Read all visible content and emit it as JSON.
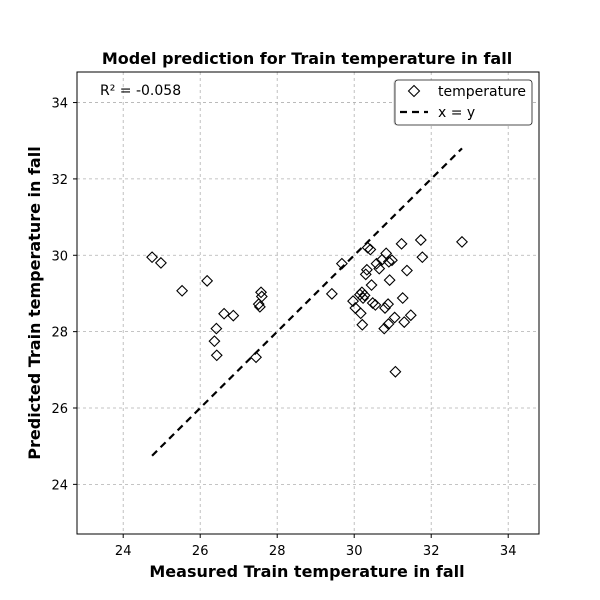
{
  "chart_data": {
    "type": "scatter",
    "title": "Model prediction for Train temperature in fall",
    "xlabel": "Measured Train temperature in fall",
    "ylabel": "Predicted Train temperature in fall",
    "annotation": "R² = -0.058",
    "xlim": [
      22.8,
      34.8
    ],
    "ylim": [
      22.7,
      34.8
    ],
    "xticks": [
      24,
      26,
      28,
      30,
      32,
      34
    ],
    "yticks": [
      24,
      26,
      28,
      30,
      32,
      34
    ],
    "grid": true,
    "legend_position": "top-right",
    "series": [
      {
        "name": "temperature",
        "marker": "diamond",
        "color": "#000000",
        "points": [
          [
            24.75,
            29.95
          ],
          [
            24.98,
            29.8
          ],
          [
            25.53,
            29.07
          ],
          [
            26.18,
            29.33
          ],
          [
            26.37,
            27.75
          ],
          [
            26.42,
            28.08
          ],
          [
            26.43,
            27.38
          ],
          [
            26.62,
            28.47
          ],
          [
            26.86,
            28.42
          ],
          [
            27.45,
            27.33
          ],
          [
            27.52,
            28.72
          ],
          [
            27.55,
            28.65
          ],
          [
            27.58,
            29.03
          ],
          [
            27.6,
            28.92
          ],
          [
            29.42,
            28.99
          ],
          [
            29.68,
            29.78
          ],
          [
            29.97,
            28.8
          ],
          [
            30.03,
            28.62
          ],
          [
            30.15,
            28.97
          ],
          [
            30.17,
            28.48
          ],
          [
            30.2,
            29.03
          ],
          [
            30.21,
            28.18
          ],
          [
            30.23,
            28.88
          ],
          [
            30.27,
            28.95
          ],
          [
            30.3,
            29.5
          ],
          [
            30.33,
            29.62
          ],
          [
            30.35,
            30.2
          ],
          [
            30.42,
            30.15
          ],
          [
            30.45,
            29.22
          ],
          [
            30.48,
            28.75
          ],
          [
            30.55,
            28.7
          ],
          [
            30.58,
            29.78
          ],
          [
            30.65,
            29.65
          ],
          [
            30.72,
            29.88
          ],
          [
            30.78,
            28.08
          ],
          [
            30.8,
            28.62
          ],
          [
            30.83,
            30.05
          ],
          [
            30.88,
            28.72
          ],
          [
            30.89,
            28.2
          ],
          [
            30.9,
            29.83
          ],
          [
            30.92,
            29.35
          ],
          [
            30.98,
            29.87
          ],
          [
            31.05,
            28.37
          ],
          [
            31.07,
            26.95
          ],
          [
            31.23,
            30.3
          ],
          [
            31.26,
            28.88
          ],
          [
            31.3,
            28.25
          ],
          [
            31.37,
            29.6
          ],
          [
            31.47,
            28.43
          ],
          [
            31.73,
            30.4
          ],
          [
            31.77,
            29.95
          ],
          [
            32.8,
            30.35
          ]
        ]
      },
      {
        "name": "x = y",
        "style": "dashed",
        "color": "#000000",
        "points": [
          [
            24.75,
            24.75
          ],
          [
            32.8,
            32.8
          ]
        ]
      }
    ]
  }
}
